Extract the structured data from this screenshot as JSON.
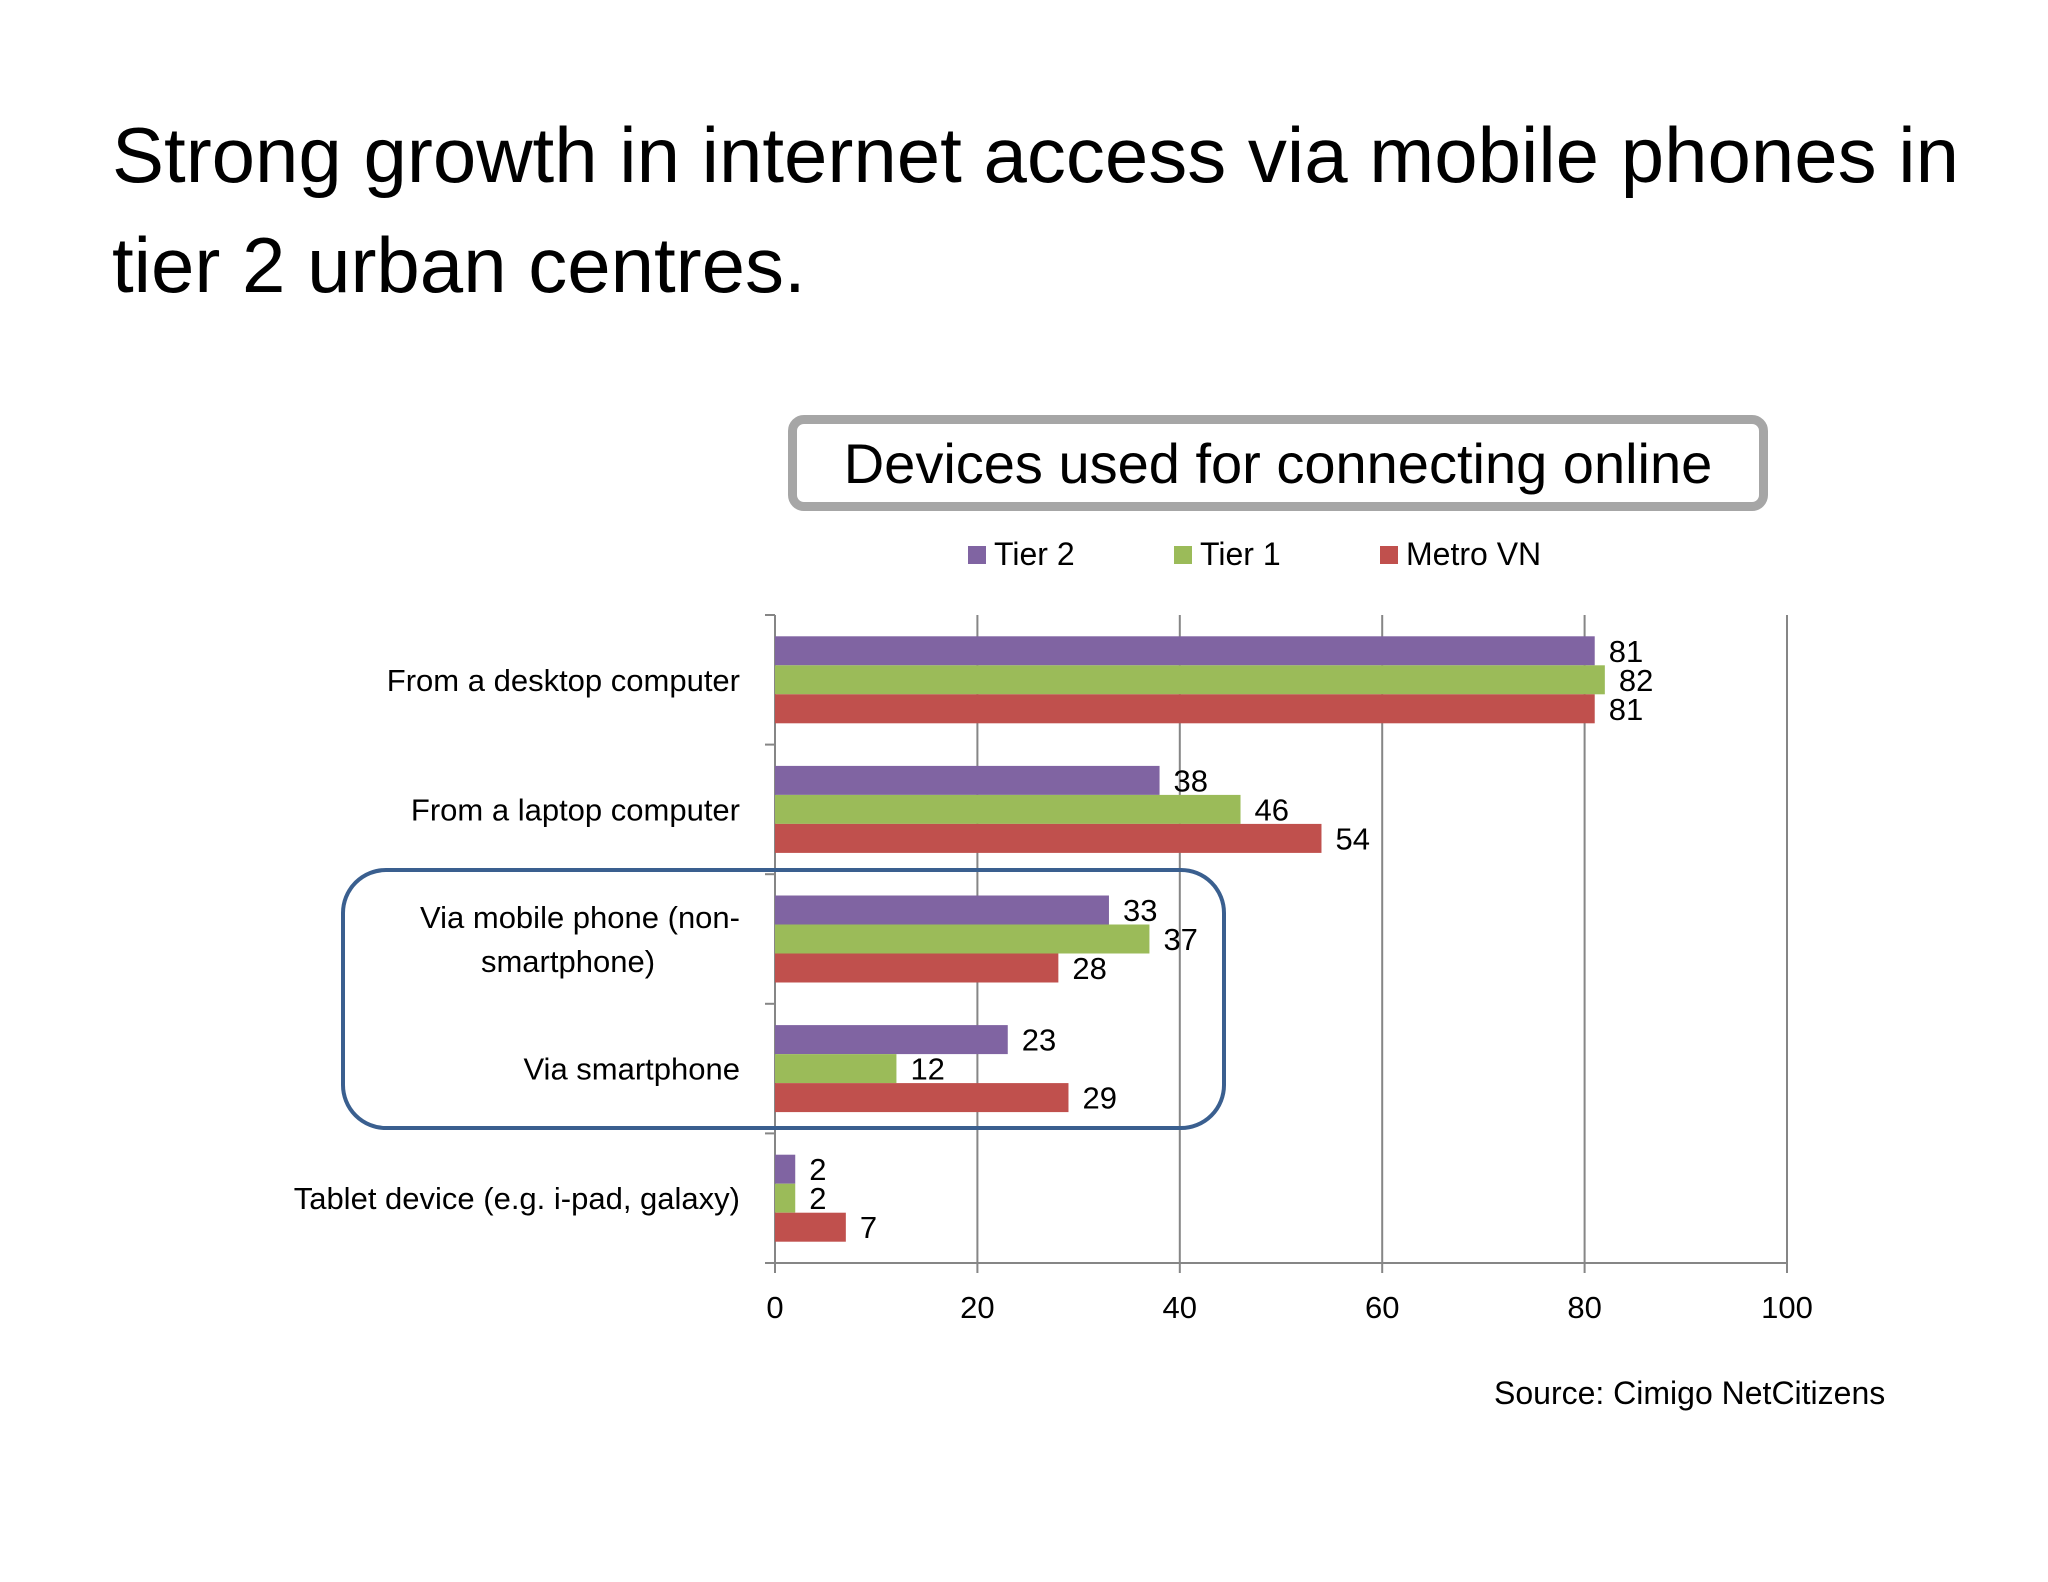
{
  "title": "Strong growth in internet access via mobile phones in tier 2 urban centres.",
  "source": "Source: Cimigo NetCitizens",
  "colors": {
    "tier2": "#8064a2",
    "tier1": "#9bbb59",
    "metro": "#c0504d",
    "highlight": "#3a5f8f",
    "title_frame": "#a6a6a6"
  },
  "chart_data": {
    "type": "bar",
    "orientation": "horizontal",
    "title": "Devices used for connecting online",
    "categories": [
      "From a desktop computer",
      "From a laptop computer",
      "Via mobile phone (non-smartphone)",
      "Via smartphone",
      "Tablet device (e.g. i-pad, galaxy)"
    ],
    "category_lines": [
      [
        "From a desktop computer"
      ],
      [
        "From a laptop computer"
      ],
      [
        "Via mobile phone (non-",
        "smartphone)"
      ],
      [
        "Via smartphone"
      ],
      [
        "Tablet device (e.g. i-pad, galaxy)"
      ]
    ],
    "series": [
      {
        "name": "Tier 2",
        "color": "#8064a2",
        "values": [
          81,
          38,
          33,
          23,
          2
        ]
      },
      {
        "name": "Tier 1",
        "color": "#9bbb59",
        "values": [
          82,
          46,
          37,
          12,
          2
        ]
      },
      {
        "name": "Metro VN",
        "color": "#c0504d",
        "values": [
          81,
          54,
          28,
          29,
          7
        ]
      }
    ],
    "xlim": [
      0,
      100
    ],
    "xticks": [
      0,
      20,
      40,
      60,
      80,
      100
    ],
    "grid": true,
    "legend": "top",
    "data_labels": true,
    "highlighted_categories": [
      "Via mobile phone (non-smartphone)",
      "Via smartphone"
    ]
  }
}
